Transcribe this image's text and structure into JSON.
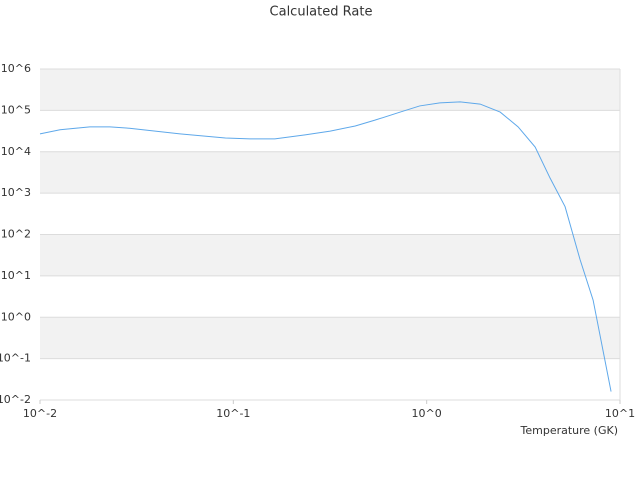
{
  "chart_data": {
    "type": "line",
    "title": "Calculated Rate",
    "x_label": "Temperature (GK)",
    "x_scale": "log",
    "y_scale": "log",
    "xlim": [
      0.01,
      10
    ],
    "ylim": [
      0.01,
      1000000
    ],
    "xticks": [
      {
        "value": 0.01,
        "label": "10^-2"
      },
      {
        "value": 0.1,
        "label": "10^-1"
      },
      {
        "value": 1,
        "label": "10^0"
      },
      {
        "value": 10,
        "label": "10^1"
      }
    ],
    "yticks": [
      {
        "value": 0.01,
        "label": "10^-2"
      },
      {
        "value": 0.1,
        "label": "10^-1"
      },
      {
        "value": 1,
        "label": "10^0"
      },
      {
        "value": 10,
        "label": "10^1"
      },
      {
        "value": 100,
        "label": "10^2"
      },
      {
        "value": 1000,
        "label": "10^3"
      },
      {
        "value": 10000,
        "label": "10^4"
      },
      {
        "value": 100000,
        "label": "10^5"
      },
      {
        "value": 1000000,
        "label": "10^6"
      }
    ],
    "grid": true,
    "series": [
      {
        "color": "#5ea8ea",
        "x": [
          0.01,
          0.0127,
          0.0181,
          0.023,
          0.029,
          0.053,
          0.091,
          0.122,
          0.164,
          0.235,
          0.317,
          0.427,
          0.54,
          0.73,
          0.92,
          1.17,
          1.49,
          1.89,
          2.4,
          2.97,
          3.64,
          4.35,
          5.2,
          6.21,
          7.26,
          8.99
        ],
        "values": [
          27000,
          34000,
          40000,
          40000,
          37000,
          27000,
          21500,
          20500,
          20500,
          25500,
          31500,
          42000,
          58000,
          91000,
          128000,
          152000,
          160000,
          142000,
          91000,
          40000,
          13000,
          2300,
          470,
          25,
          2.6,
          0.016
        ]
      }
    ]
  }
}
